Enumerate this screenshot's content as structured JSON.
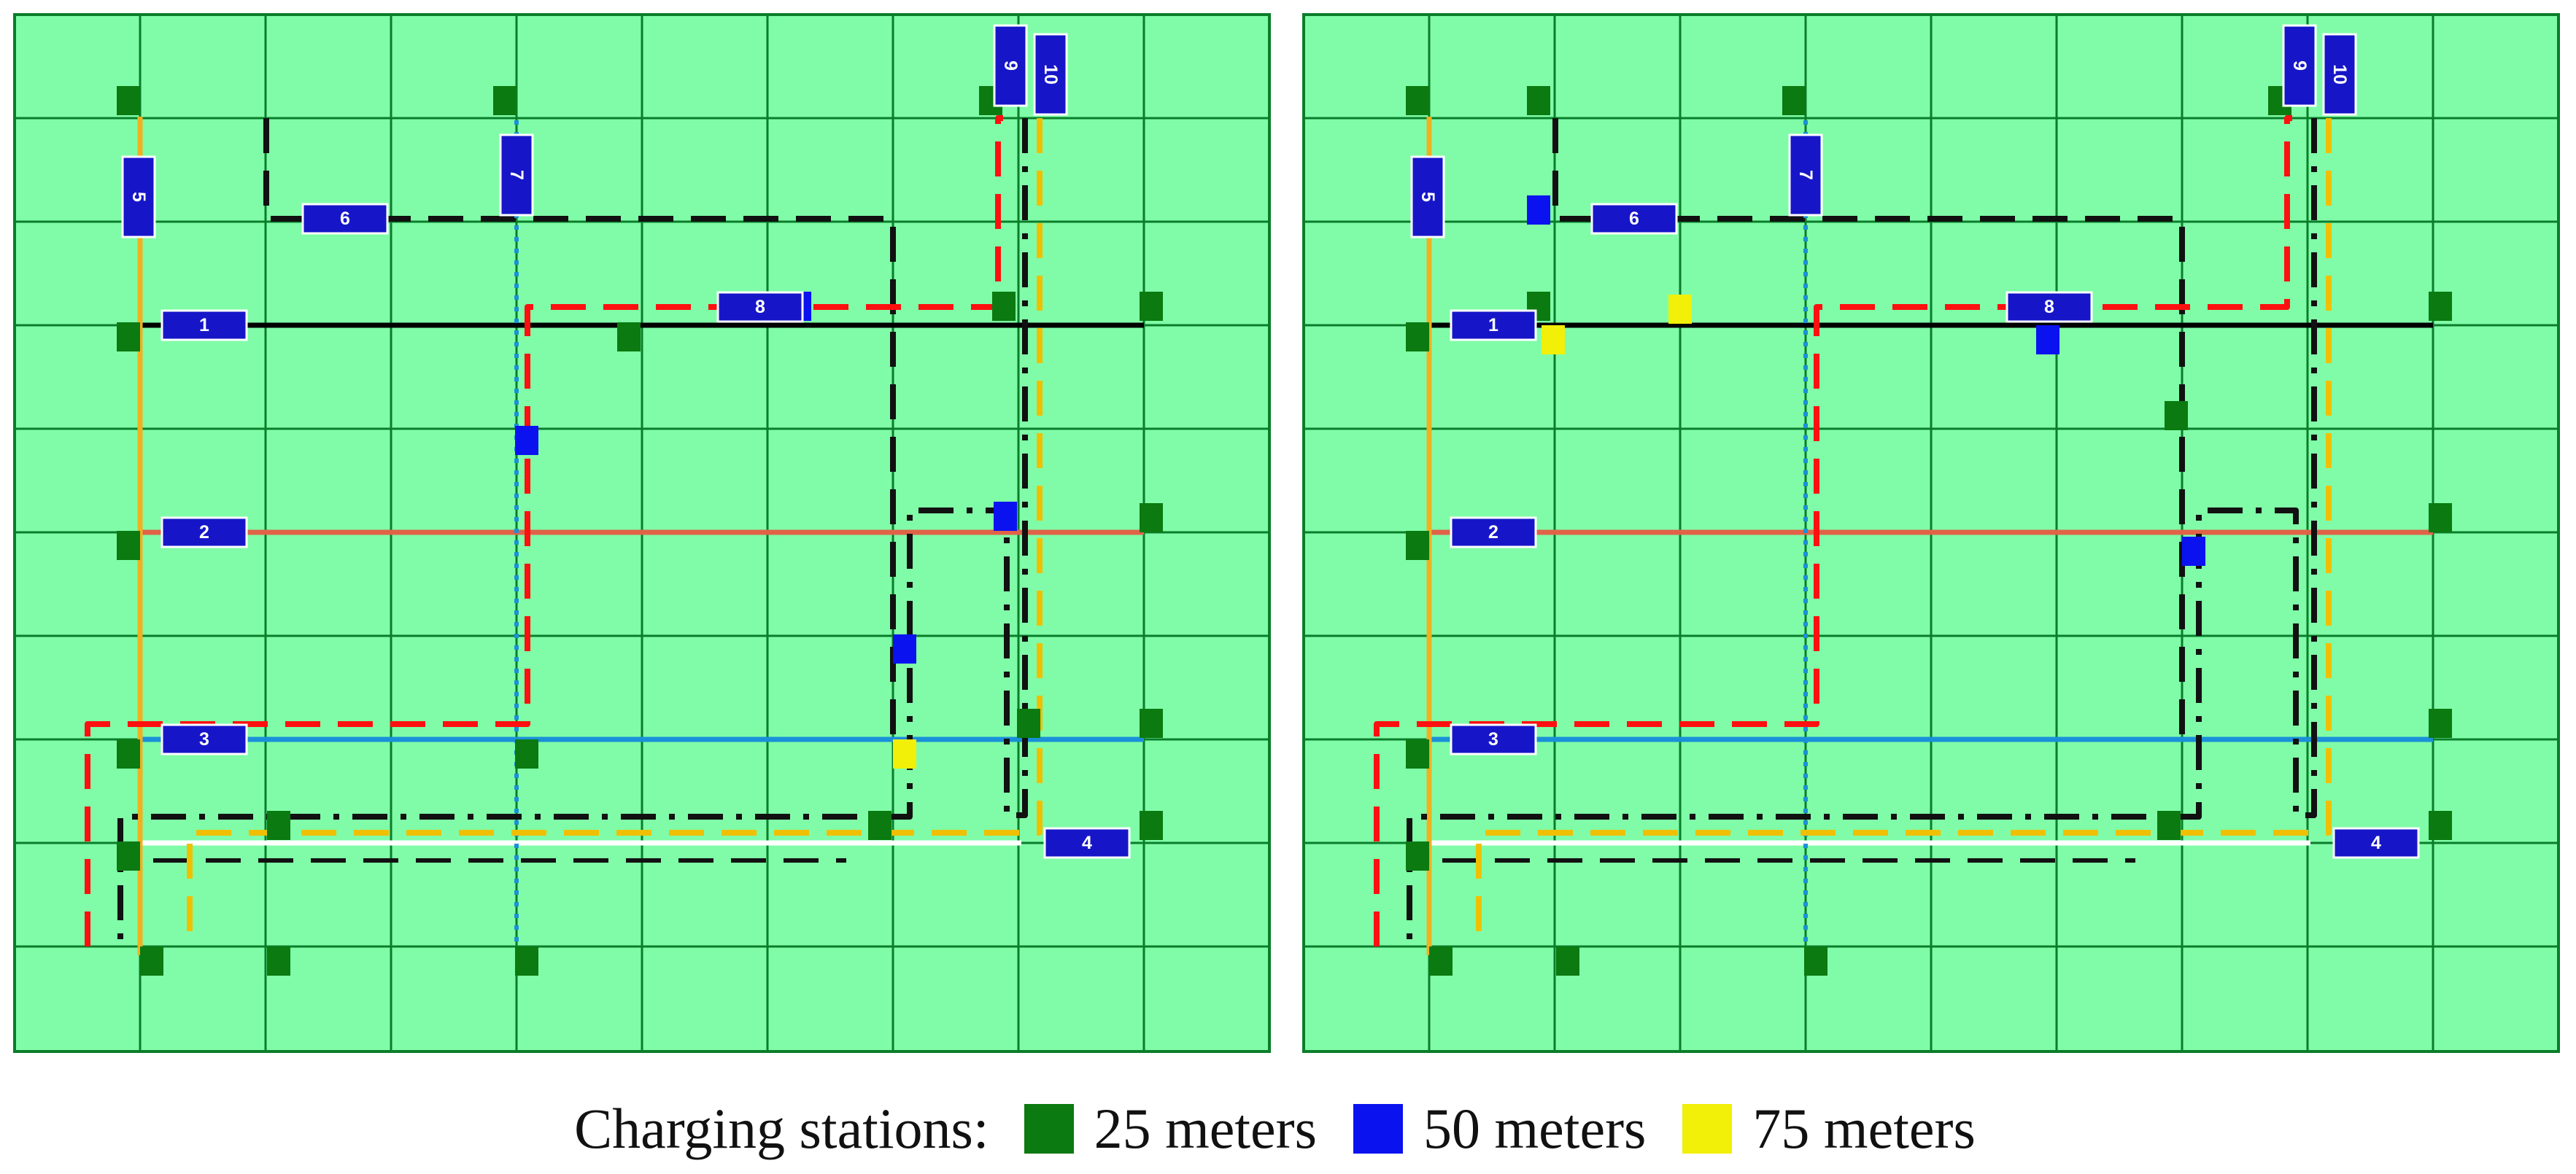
{
  "colors": {
    "background": "#80fca8",
    "grid": "#0a7d2a",
    "station_25": "#0b7a10",
    "station_50": "#0a12f0",
    "station_75": "#f2ef08",
    "label_fill": "#1616c8",
    "label_border": "#ffffff"
  },
  "panels": [
    {
      "name": "left",
      "lines": [
        {
          "id": "1",
          "label": "1",
          "color": "#000000",
          "style": "solid"
        },
        {
          "id": "2",
          "label": "2",
          "color": "#e06248",
          "style": "solid"
        },
        {
          "id": "3",
          "label": "3",
          "color": "#1a90d8",
          "style": "solid"
        },
        {
          "id": "4",
          "label": "4",
          "color": "#ffffff",
          "style": "solid"
        },
        {
          "id": "5",
          "label": "5",
          "color": "#f0b020",
          "style": "solid"
        },
        {
          "id": "6",
          "label": "6",
          "color": "#111111",
          "style": "dashed"
        },
        {
          "id": "7",
          "label": "7",
          "color": "#1a90d8",
          "style": "dotted"
        },
        {
          "id": "8",
          "label": "8",
          "color": "#ff1010",
          "style": "dashed"
        },
        {
          "id": "9",
          "label": "9",
          "color": "#111111",
          "style": "dash-dot"
        },
        {
          "id": "10",
          "label": "10",
          "color": "#f0c000",
          "style": "dashed"
        }
      ]
    },
    {
      "name": "right",
      "lines": [
        {
          "id": "1",
          "label": "1",
          "color": "#000000",
          "style": "solid"
        },
        {
          "id": "2",
          "label": "2",
          "color": "#e06248",
          "style": "solid"
        },
        {
          "id": "3",
          "label": "3",
          "color": "#1a90d8",
          "style": "solid"
        },
        {
          "id": "4",
          "label": "4",
          "color": "#ffffff",
          "style": "solid"
        },
        {
          "id": "5",
          "label": "5",
          "color": "#f0b020",
          "style": "solid"
        },
        {
          "id": "6",
          "label": "6",
          "color": "#111111",
          "style": "dashed"
        },
        {
          "id": "7",
          "label": "7",
          "color": "#1a90d8",
          "style": "dotted"
        },
        {
          "id": "8",
          "label": "8",
          "color": "#ff1010",
          "style": "dashed"
        },
        {
          "id": "9",
          "label": "9",
          "color": "#111111",
          "style": "dash-dot"
        },
        {
          "id": "10",
          "label": "10",
          "color": "#f0c000",
          "style": "dashed"
        }
      ]
    }
  ],
  "legend": {
    "title": "Charging stations:",
    "items": [
      {
        "label": "25 meters",
        "color": "#0b7a10"
      },
      {
        "label": "50 meters",
        "color": "#0a12f0"
      },
      {
        "label": "75 meters",
        "color": "#f2ef08"
      }
    ]
  }
}
